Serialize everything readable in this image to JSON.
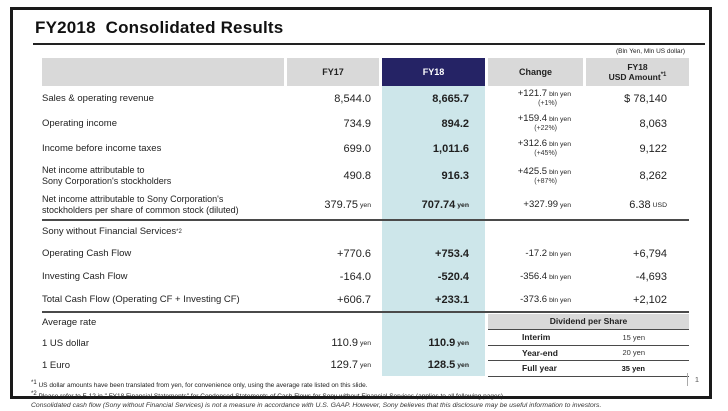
{
  "slide": {
    "title": "FY2018  Consolidated Results",
    "unit_note": "(Bln Yen, Mln US dollar)",
    "page_number": "1"
  },
  "colors": {
    "fy18_header_bg": "#252365",
    "fy18_column_bg": "#cde6ea",
    "header_gray_bg": "#d9d9d9"
  },
  "table": {
    "headers": {
      "fy17": "FY17",
      "fy18": "FY18",
      "change": "Change",
      "usd_line1": "FY18",
      "usd_line2": "USD Amount",
      "usd_sup": "*1"
    },
    "sections": {
      "swfs": "Sony without Financial Services",
      "swfs_sup": "*2",
      "avg_rate": "Average rate"
    },
    "rows": [
      {
        "label": "Sales & operating revenue",
        "fy17": "8,544.0",
        "fy18": "8,665.7",
        "change": "+121.7",
        "change_unit": "bln yen",
        "change_pct": "(+1%)",
        "usd": "$ 78,140"
      },
      {
        "label": "Operating income",
        "fy17": "734.9",
        "fy18": "894.2",
        "change": "+159.4",
        "change_unit": "bln yen",
        "change_pct": "(+22%)",
        "usd": "8,063"
      },
      {
        "label": "Income before income taxes",
        "fy17": "699.0",
        "fy18": "1,011.6",
        "change": "+312.6",
        "change_unit": "bln yen",
        "change_pct": "(+45%)",
        "usd": "9,122"
      },
      {
        "label": "Net income attributable to",
        "label2": "Sony Corporation's stockholders",
        "fy17": "490.8",
        "fy18": "916.3",
        "change": "+425.5",
        "change_unit": "bln yen",
        "change_pct": "(+87%)",
        "usd": "8,262"
      },
      {
        "label": "Net income attributable to Sony Corporation's",
        "label2": "stockholders per share of common stock (diluted)",
        "fy17": "379.75",
        "fy17_unit": "yen",
        "fy18": "707.74",
        "fy18_unit": "yen",
        "change": "+327.99",
        "change_unit": "yen",
        "usd": "6.38",
        "usd_unit": "USD"
      },
      {
        "label": "Operating Cash Flow",
        "fy17": "+770.6",
        "fy18": "+753.4",
        "change": "-17.2",
        "change_unit": "bln yen",
        "usd": "+6,794"
      },
      {
        "label": "Investing Cash Flow",
        "fy17": "-164.0",
        "fy18": "-520.4",
        "change": "-356.4",
        "change_unit": "bln yen",
        "usd": "-4,693"
      },
      {
        "label": "Total Cash Flow (Operating CF + Investing CF)",
        "fy17": "+606.7",
        "fy18": "+233.1",
        "change": "-373.6",
        "change_unit": "bln yen",
        "usd": "+2,102"
      },
      {
        "label": "1 US dollar",
        "fy17": "110.9",
        "fy17_unit": "yen",
        "fy18": "110.9",
        "fy18_unit": "yen"
      },
      {
        "label": "1 Euro",
        "fy17": "129.7",
        "fy17_unit": "yen",
        "fy18": "128.5",
        "fy18_unit": "yen"
      }
    ]
  },
  "dividend": {
    "title": "Dividend per Share",
    "rows": [
      {
        "label": "Interim",
        "value": "15 yen"
      },
      {
        "label": "Year-end",
        "value": "20 yen"
      },
      {
        "label": "Full year",
        "value": "35 yen"
      }
    ]
  },
  "footnotes": {
    "f1_marker": "*1",
    "f1": " US dollar amounts have been translated from yen, for convenience only, using the average rate listed on this slide.",
    "f2_marker": "*2",
    "f2": " Please refer to F-12 in \" FY18 Financial Statements\" for Condensed Statements of Cash Flows for Sony without Financial Services (applies to all following pages).",
    "f3": "Consolidated cash flow (Sony without Financial Services) is not a measure in accordance with U.S. GAAP.  However, Sony believes that this disclosure may be useful information to investors."
  }
}
